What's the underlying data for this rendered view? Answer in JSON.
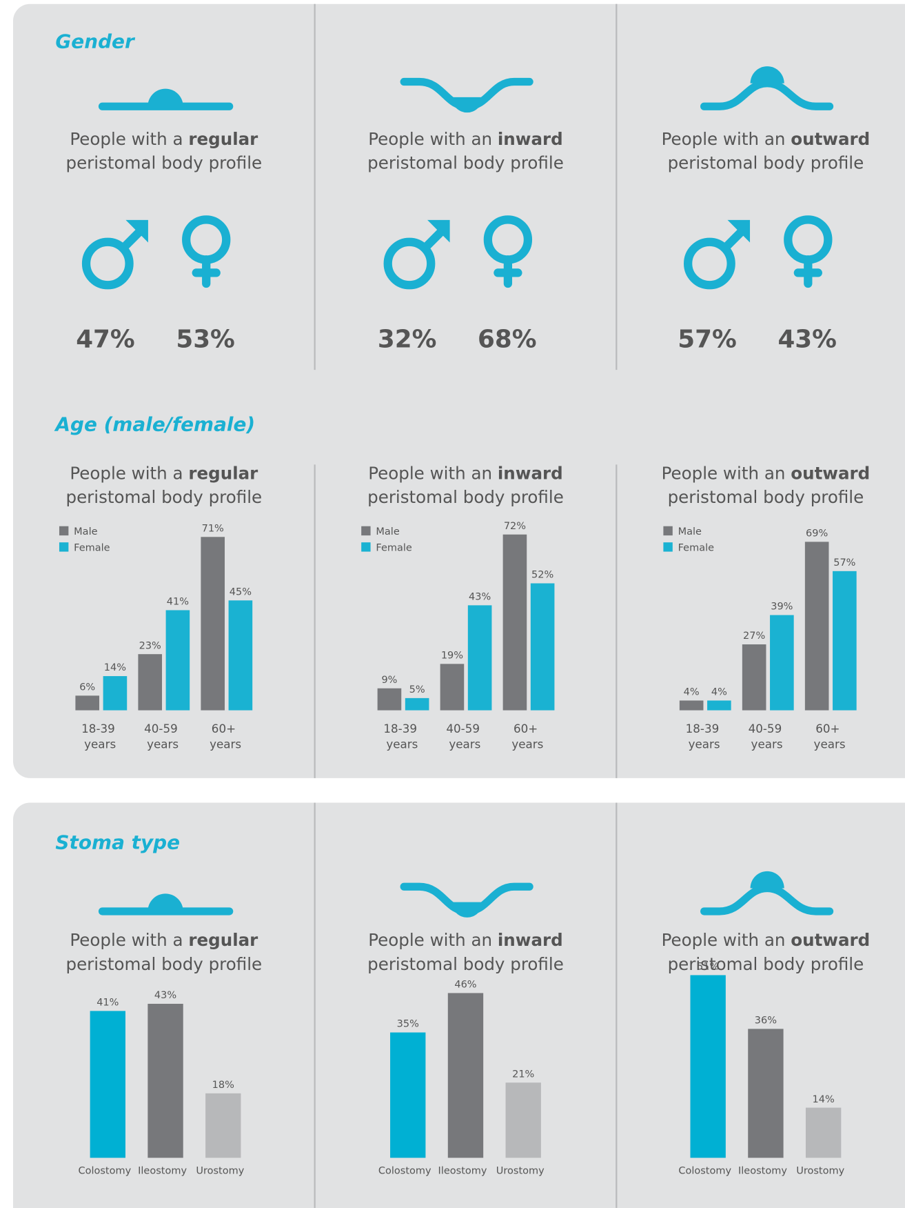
{
  "sections": {
    "gender": "Gender",
    "age": "Age (male/female)",
    "stoma": "Stoma type"
  },
  "profiles": [
    {
      "prefix": "People with a",
      "emphasis": "regular",
      "suffix": "peristomal body profile"
    },
    {
      "prefix": "People with an",
      "emphasis": "inward",
      "suffix": "peristomal body profile"
    },
    {
      "prefix": "People with an",
      "emphasis": "outward",
      "suffix": "peristomal body profile"
    }
  ],
  "gender": {
    "male": [
      "47%",
      "32%",
      "57%"
    ],
    "female": [
      "53%",
      "68%",
      "43%"
    ]
  },
  "chart_data": [
    {
      "type": "bar",
      "categories": [
        "18-39 years",
        "40-59 years",
        "60+ years"
      ],
      "series": [
        {
          "name": "Male",
          "color": "#77787b",
          "values": [
            6,
            23,
            71
          ],
          "value_labels": [
            "6%",
            "23%",
            "71%"
          ]
        },
        {
          "name": "Female",
          "color": "#1ab2d2",
          "values": [
            14,
            41,
            45
          ],
          "value_labels": [
            "14%",
            "41%",
            "45%"
          ]
        }
      ]
    },
    {
      "type": "bar",
      "categories": [
        "18-39 years",
        "40-59 years",
        "60+ years"
      ],
      "series": [
        {
          "name": "Male",
          "color": "#77787b",
          "values": [
            9,
            19,
            72
          ],
          "value_labels": [
            "9%",
            "19%",
            "72%"
          ]
        },
        {
          "name": "Female",
          "color": "#1ab2d2",
          "values": [
            5,
            43,
            52
          ],
          "value_labels": [
            "5%",
            "43%",
            "52%"
          ]
        }
      ]
    },
    {
      "type": "bar",
      "categories": [
        "18-39 years",
        "40-59 years",
        "60+ years"
      ],
      "series": [
        {
          "name": "Male",
          "color": "#77787b",
          "values": [
            4,
            27,
            69
          ],
          "value_labels": [
            "4%",
            "27%",
            "69%"
          ]
        },
        {
          "name": "Female",
          "color": "#1ab2d2",
          "values": [
            4,
            39,
            57
          ],
          "value_labels": [
            "4%",
            "39%",
            "57%"
          ]
        }
      ]
    },
    {
      "type": "bar",
      "categories": [
        "Colostomy",
        "Ileostomy",
        "Urostomy"
      ],
      "colors": [
        "#00b0d3",
        "#77787b",
        "#b7b8ba"
      ],
      "values": [
        41,
        43,
        18
      ],
      "value_labels": [
        "41%",
        "43%",
        "18%"
      ]
    },
    {
      "type": "bar",
      "categories": [
        "Colostomy",
        "Ileostomy",
        "Urostomy"
      ],
      "colors": [
        "#00b0d3",
        "#77787b",
        "#b7b8ba"
      ],
      "values": [
        35,
        46,
        21
      ],
      "value_labels": [
        "35%",
        "46%",
        "21%"
      ]
    },
    {
      "type": "bar",
      "categories": [
        "Colostomy",
        "Ileostomy",
        "Urostomy"
      ],
      "colors": [
        "#00b0d3",
        "#77787b",
        "#b7b8ba"
      ],
      "values": [
        51,
        36,
        14
      ],
      "value_labels": [
        "51%",
        "36%",
        "14%"
      ]
    }
  ]
}
